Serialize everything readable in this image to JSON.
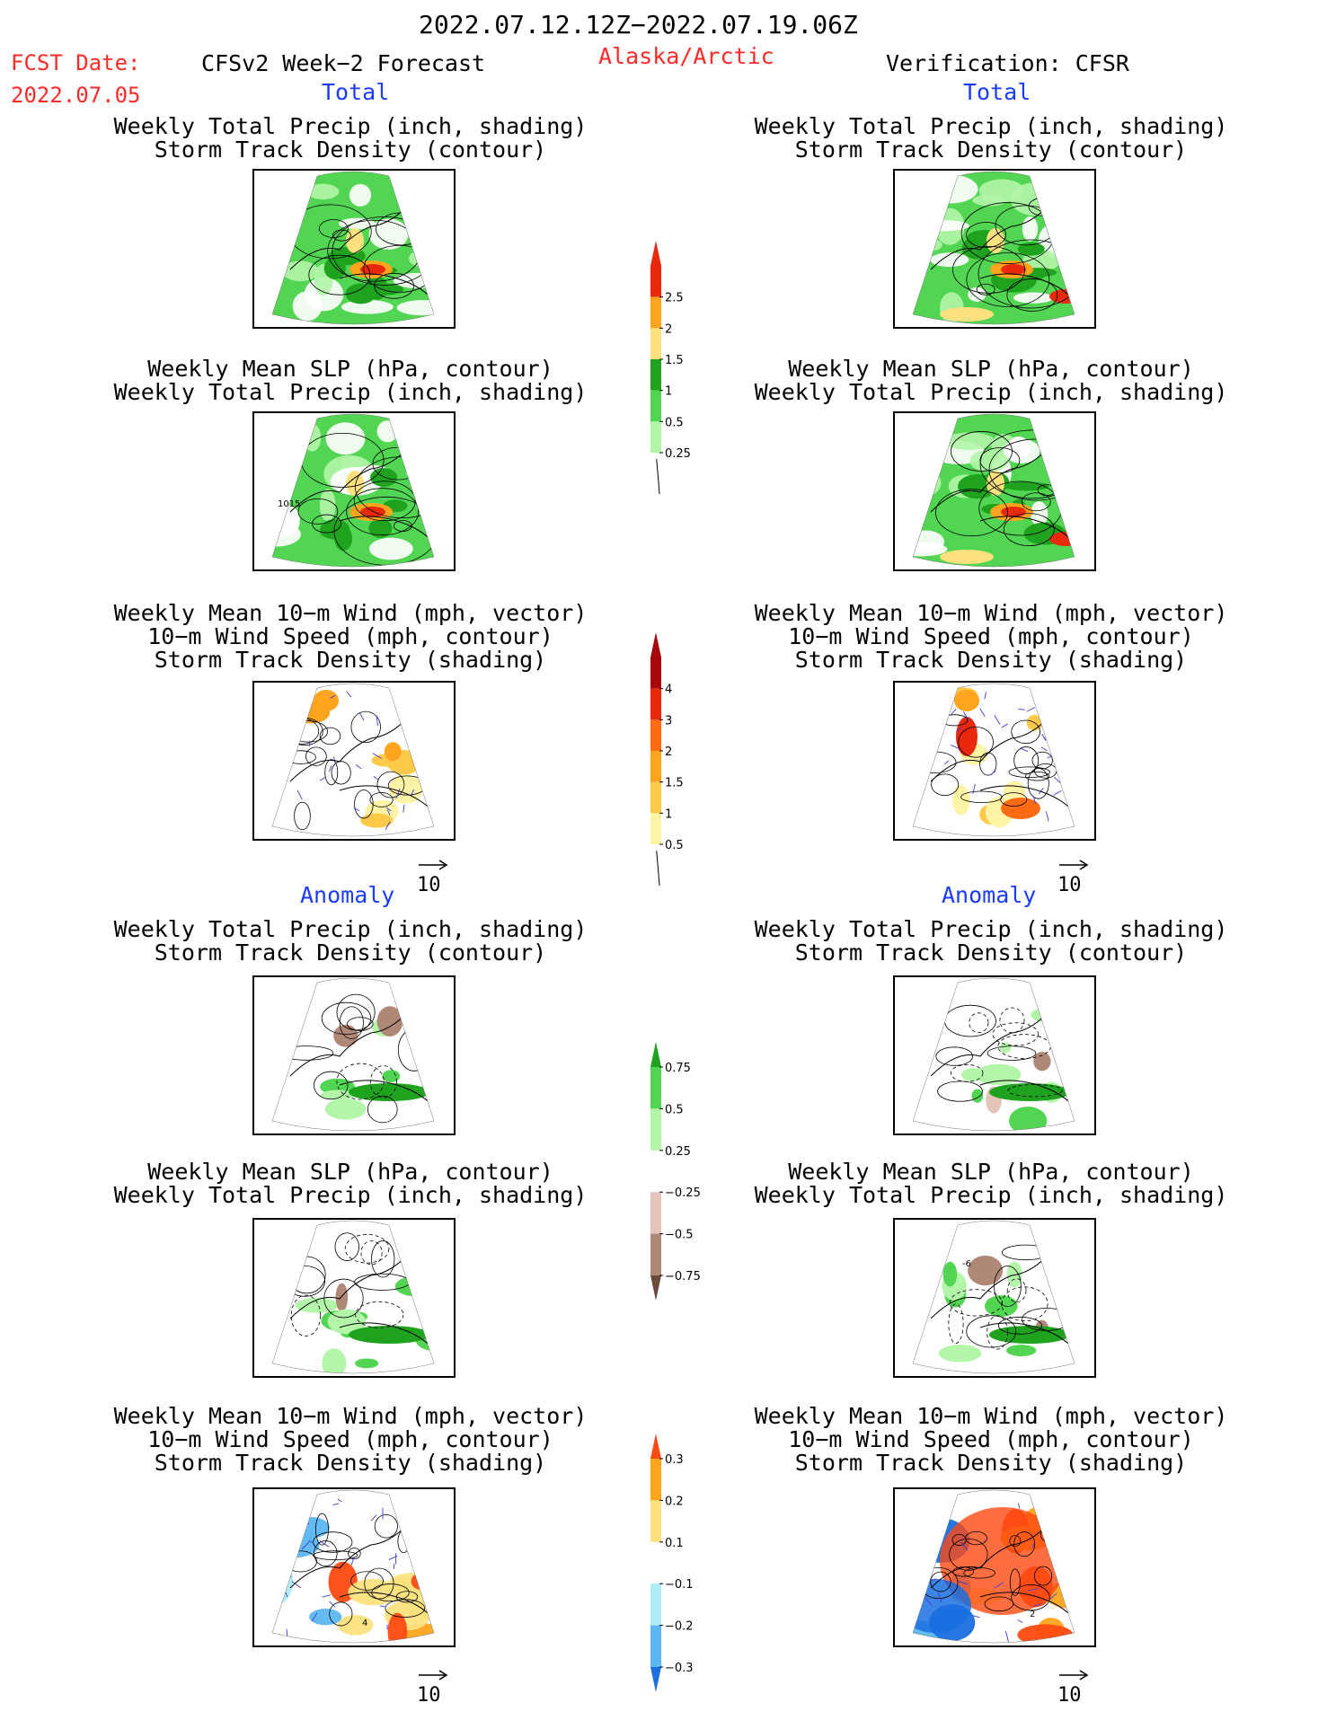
{
  "header": {
    "date_range": "2022.07.12.12Z−2022.07.19.06Z",
    "fcst_label": "FCST Date:",
    "fcst_date": "2022.07.05",
    "model": "CFSv2 Week−2 Forecast",
    "region": "Alaska/Arctic",
    "verification": "Verification: CFSR"
  },
  "sections": {
    "total": "Total",
    "anomaly": "Anomaly"
  },
  "titles": {
    "precip_storm": [
      "Weekly Total Precip (inch, shading)",
      "Storm Track Density (contour)"
    ],
    "slp_precip": [
      "Weekly Mean SLP (hPa, contour)",
      "Weekly Total Precip (inch, shading)"
    ],
    "wind_storm": [
      "Weekly Mean 10−m Wind (mph, vector)",
      "10−m Wind Speed (mph, contour)",
      "Storm Track Density (shading)"
    ]
  },
  "vector_reference": "10",
  "chart_data": [
    {
      "type": "heatmap",
      "panel": "forecast-total-precip-storm",
      "column": "CFSv2 Week−2 Forecast",
      "contour_labels": []
    },
    {
      "type": "heatmap",
      "panel": "forecast-total-slp-precip",
      "column": "CFSv2 Week−2 Forecast",
      "contour_labels": [
        "1015"
      ]
    },
    {
      "type": "heatmap",
      "panel": "forecast-total-wind-storm",
      "column": "CFSv2 Week−2 Forecast",
      "contour_labels": []
    },
    {
      "type": "heatmap",
      "panel": "verification-total-precip-storm",
      "column": "Verification: CFSR",
      "contour_labels": []
    },
    {
      "type": "heatmap",
      "panel": "verification-total-slp-precip",
      "column": "Verification: CFSR",
      "contour_labels": []
    },
    {
      "type": "heatmap",
      "panel": "verification-total-wind-storm",
      "column": "Verification: CFSR",
      "contour_labels": []
    },
    {
      "type": "heatmap",
      "panel": "forecast-anomaly-precip-storm",
      "column": "CFSv2 Week−2 Forecast",
      "contour_labels": []
    },
    {
      "type": "heatmap",
      "panel": "forecast-anomaly-slp-precip",
      "column": "CFSv2 Week−2 Forecast",
      "contour_labels": []
    },
    {
      "type": "heatmap",
      "panel": "forecast-anomaly-wind-storm",
      "column": "CFSv2 Week−2 Forecast",
      "contour_labels": [
        "4"
      ]
    },
    {
      "type": "heatmap",
      "panel": "verification-anomaly-precip-storm",
      "column": "Verification: CFSR",
      "contour_labels": []
    },
    {
      "type": "heatmap",
      "panel": "verification-anomaly-slp-precip",
      "column": "Verification: CFSR",
      "contour_labels": [
        "-6"
      ]
    },
    {
      "type": "heatmap",
      "panel": "verification-anomaly-wind-storm",
      "column": "Verification: CFSR",
      "contour_labels": [
        "2"
      ]
    }
  ],
  "colorbars": {
    "total_precip": {
      "labels": [
        "2.5",
        "2",
        "1.5",
        "1",
        "0.5",
        "0.25"
      ],
      "colors": [
        "#e8290b",
        "#ffa41e",
        "#fce17e",
        "#1fa31f",
        "#52d552",
        "#b3f5a9"
      ]
    },
    "storm_density": {
      "labels": [
        "4",
        "3",
        "2",
        "1.5",
        "1",
        "0.5"
      ],
      "colors": [
        "#a8060c",
        "#e8290b",
        "#ff6a12",
        "#ffa41e",
        "#ffc94a",
        "#fff4a6"
      ]
    },
    "anomaly_precip": {
      "labels": [
        "0.75",
        "0.5",
        "0.25",
        "−0.25",
        "−0.5",
        "−0.75"
      ],
      "colors": [
        "#1fa31f",
        "#52d552",
        "#b3f5a9",
        "#ffffff",
        "#e4c4b8",
        "#b08878",
        "#6b4a3c"
      ]
    },
    "anomaly_storm": {
      "labels": [
        "0.3",
        "0.2",
        "0.1",
        "−0.1",
        "−0.2",
        "−0.3"
      ],
      "colors": [
        "#ff4a12",
        "#ffa41e",
        "#fce17e",
        "#ffffff",
        "#b0ecf8",
        "#5cb6f2",
        "#1a6fe0"
      ]
    }
  }
}
